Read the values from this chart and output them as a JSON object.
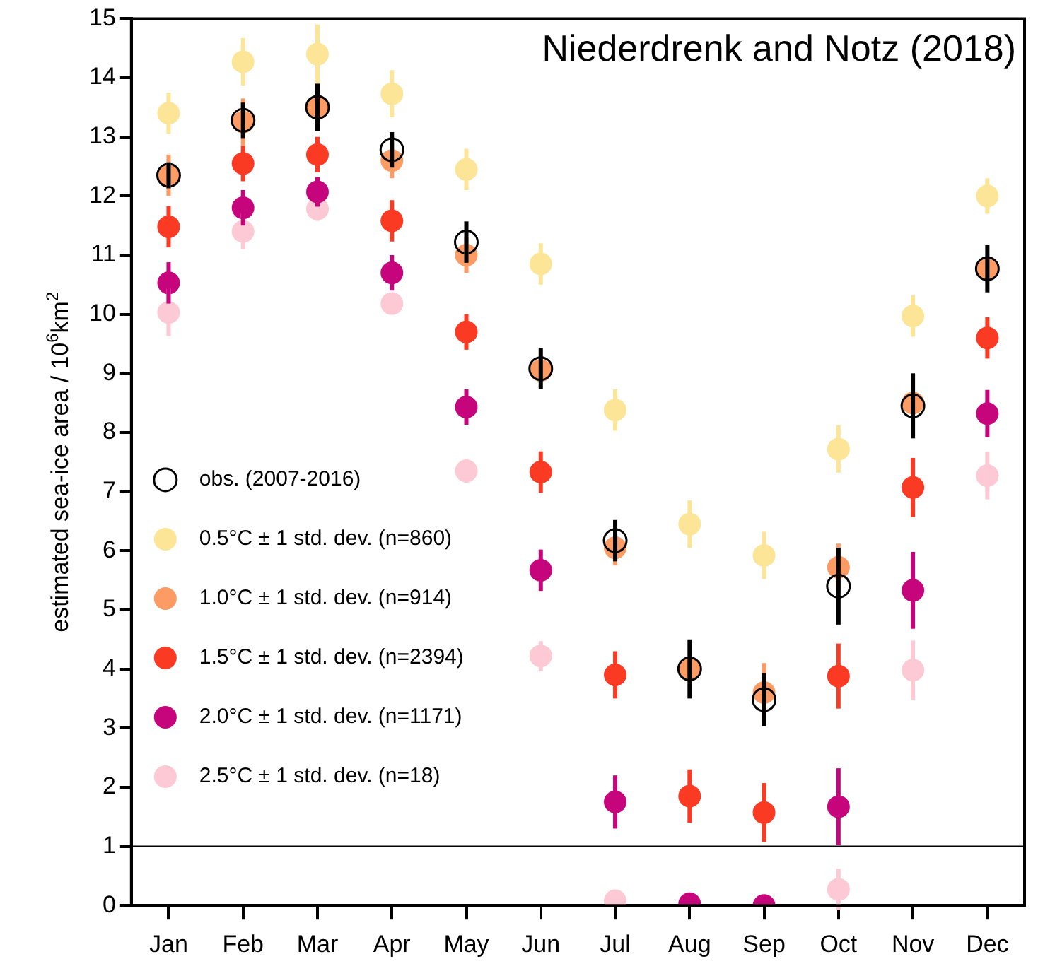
{
  "chart_data": {
    "type": "scatter",
    "ylabel": "estimated sea-ice area / 10$^{6}$km$^{2}$",
    "annotations": [
      "Niederdrenk and Notz (2018)"
    ],
    "categories": [
      "Jan",
      "Feb",
      "Mar",
      "Apr",
      "May",
      "Jun",
      "Jul",
      "Aug",
      "Sep",
      "Oct",
      "Nov",
      "Dec"
    ],
    "ylim": [
      0,
      15
    ],
    "yticks": [
      0,
      1,
      2,
      3,
      4,
      5,
      6,
      7,
      8,
      9,
      10,
      11,
      12,
      13,
      14,
      15
    ],
    "grid": false,
    "legend": "left",
    "marker": "circle",
    "ref_lines": [
      {
        "axis": "y",
        "value": 1,
        "color": "#000000"
      }
    ],
    "series": [
      {
        "name": "obs. (2007-2016)",
        "color": "#000000",
        "values": [
          12.35,
          13.28,
          13.5,
          12.78,
          11.22,
          9.08,
          6.17,
          4.0,
          3.48,
          5.4,
          8.45,
          10.77
        ],
        "errors": [
          0.22,
          0.3,
          0.4,
          0.3,
          0.35,
          0.35,
          0.35,
          0.5,
          0.45,
          0.65,
          0.55,
          0.4
        ]
      },
      {
        "name": "0.5°C ± 1 std. dev. (n=860)",
        "color": "#fde597",
        "values": [
          13.4,
          14.27,
          14.4,
          13.73,
          12.45,
          10.85,
          8.38,
          6.45,
          5.92,
          7.72,
          9.97,
          12.0
        ],
        "errors": [
          0.35,
          0.4,
          0.5,
          0.4,
          0.35,
          0.35,
          0.35,
          0.4,
          0.4,
          0.4,
          0.35,
          0.3
        ]
      },
      {
        "name": "1.0°C ± 1 std. dev. (n=914)",
        "color": "#fc9b64",
        "values": [
          12.35,
          13.25,
          13.5,
          12.6,
          11.0,
          9.05,
          6.05,
          4.0,
          3.6,
          5.72,
          8.5,
          10.77
        ],
        "errors": [
          0.35,
          0.4,
          null,
          0.3,
          0.3,
          null,
          0.3,
          null,
          0.5,
          0.4,
          null,
          null
        ]
      },
      {
        "name": "1.5°C ± 1 std. dev. (n=2394)",
        "color": "#fb3a24",
        "values": [
          11.48,
          12.55,
          12.7,
          11.58,
          9.7,
          7.33,
          3.9,
          1.85,
          1.57,
          3.88,
          7.07,
          9.6
        ],
        "errors": [
          0.35,
          0.3,
          0.3,
          0.35,
          0.3,
          0.35,
          0.4,
          0.45,
          0.5,
          0.55,
          0.5,
          0.35
        ]
      },
      {
        "name": "2.0°C ± 1 std. dev. (n=1171)",
        "color": "#c6057c",
        "values": [
          10.53,
          11.8,
          12.07,
          10.7,
          8.43,
          5.67,
          1.75,
          0.03,
          0.0,
          1.67,
          5.33,
          8.32
        ],
        "errors": [
          0.35,
          0.3,
          0.25,
          0.3,
          0.3,
          0.35,
          0.45,
          null,
          null,
          0.65,
          0.65,
          0.4
        ]
      },
      {
        "name": "2.5°C ± 1 std. dev. (n=18)",
        "color": "#fcc9d4",
        "values": [
          10.03,
          11.4,
          11.78,
          10.18,
          7.35,
          4.22,
          0.08,
          null,
          null,
          0.27,
          3.98,
          7.27
        ],
        "errors": [
          0.4,
          0.3,
          0.2,
          null,
          0.2,
          0.25,
          null,
          null,
          null,
          0.35,
          0.5,
          0.4
        ]
      }
    ]
  }
}
